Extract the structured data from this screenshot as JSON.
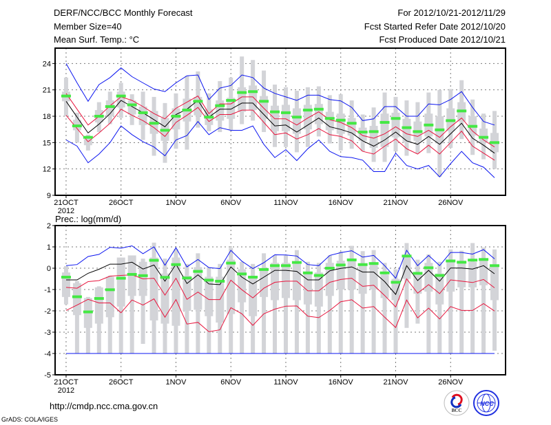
{
  "header": {
    "title": "DERF/NCC/BCC Monthly Forecast",
    "member_size": "Member Size=40",
    "variable": "Mean Surf. Temp.: °C",
    "period": "For 2012/10/21-2012/11/29",
    "start_date": "Fcst Started Refer Date 2012/10/20",
    "produced_date": "Fcst Produced Date 2012/10/21"
  },
  "footer": {
    "url": "http://cmdp.ncc.cma.gov.cn",
    "credit": "GrADS: COLA/IGES",
    "logo_bcc": "BCC",
    "logo_ncc": "NCC"
  },
  "colors": {
    "box": "#d3d4d8",
    "obs": "#44e844",
    "mean": "#000000",
    "inner": "#e8143c",
    "outer": "#0a14f0",
    "grid": "#777777"
  },
  "chart_data": [
    {
      "type": "box-line",
      "title": "Mean Surf. Temp.: °C",
      "xlabel": "",
      "ylabel": "",
      "x_tick_labels": [
        "21OCT",
        "26OCT",
        "1NOV",
        "6NOV",
        "11NOV",
        "16NOV",
        "21NOV",
        "26NOV"
      ],
      "x_tick_days": [
        0,
        5,
        10,
        15,
        20,
        25,
        30,
        35
      ],
      "x_year_label": "2012",
      "xlim": [
        -1,
        40
      ],
      "ylim": [
        9,
        25.75
      ],
      "y_ticks": [
        24,
        21,
        18,
        15,
        12,
        9
      ],
      "grid": true,
      "series": [
        {
          "name": "outer-upper",
          "color": "outer",
          "values": [
            24.0,
            21.8,
            19.7,
            21.6,
            22.4,
            23.5,
            22.5,
            21.8,
            21.1,
            20.8,
            21.8,
            22.6,
            22.7,
            19.9,
            21.2,
            21.5,
            22.7,
            22.4,
            21.2,
            20.6,
            20.2,
            19.8,
            20.4,
            20.4,
            19.9,
            19.75,
            19.0,
            17.5,
            17.7,
            19.1,
            19.1,
            18.0,
            18.0,
            19.4,
            19.3,
            19.9,
            20.8,
            19.0,
            17.4,
            17.0
          ]
        },
        {
          "name": "inner-upper",
          "color": "inner",
          "values": [
            20.6,
            18.8,
            17.0,
            18.0,
            19.2,
            20.2,
            19.8,
            19.1,
            18.3,
            17.7,
            18.9,
            19.6,
            20.3,
            18.3,
            19.4,
            19.4,
            20.2,
            20.2,
            18.9,
            17.7,
            17.7,
            17.0,
            17.8,
            18.5,
            17.6,
            17.3,
            16.7,
            15.8,
            15.5,
            16.0,
            16.8,
            16.0,
            15.7,
            16.4,
            15.6,
            16.8,
            17.8,
            16.3,
            15.3,
            14.5
          ]
        },
        {
          "name": "ensemble-mean",
          "color": "mean",
          "values": [
            19.7,
            17.9,
            16.1,
            17.1,
            18.3,
            19.8,
            19.1,
            18.4,
            17.6,
            16.8,
            18.2,
            18.8,
            19.8,
            17.9,
            18.8,
            18.8,
            19.5,
            19.5,
            18.2,
            16.9,
            17.0,
            16.2,
            17.0,
            17.8,
            16.8,
            16.5,
            16.1,
            15.2,
            14.6,
            15.3,
            16.2,
            15.2,
            14.8,
            15.7,
            14.8,
            16.0,
            17.2,
            15.5,
            14.7,
            13.8
          ]
        },
        {
          "name": "inner-lower",
          "color": "inner",
          "values": [
            18.1,
            16.6,
            15.1,
            16.1,
            17.2,
            18.8,
            18.1,
            17.5,
            16.7,
            15.7,
            17.3,
            18.1,
            19.0,
            17.4,
            18.2,
            18.2,
            18.7,
            18.7,
            17.3,
            15.9,
            16.1,
            15.4,
            15.9,
            16.6,
            15.9,
            15.7,
            15.2,
            14.0,
            13.7,
            14.6,
            15.4,
            14.3,
            13.7,
            14.7,
            13.7,
            15.0,
            16.3,
            14.6,
            13.8,
            13.0
          ]
        },
        {
          "name": "outer-lower",
          "color": "outer",
          "values": [
            15.3,
            14.6,
            12.7,
            13.7,
            15.0,
            16.9,
            15.9,
            15.1,
            14.5,
            13.5,
            15.3,
            15.8,
            17.4,
            15.9,
            16.7,
            16.4,
            16.4,
            16.9,
            14.8,
            13.3,
            14.2,
            12.95,
            14.3,
            15.3,
            14.0,
            13.4,
            13.3,
            13.0,
            11.7,
            11.7,
            13.8,
            12.4,
            12.0,
            12.4,
            11.1,
            12.6,
            14.0,
            12.7,
            12.2,
            11.0
          ]
        }
      ],
      "observed": [
        20.3,
        16.9,
        15.6,
        18.0,
        19.1,
        20.3,
        19.3,
        18.4,
        17.2,
        16.4,
        18.0,
        18.7,
        19.7,
        17.9,
        19.2,
        19.8,
        20.7,
        20.8,
        19.7,
        18.5,
        18.4,
        17.9,
        18.7,
        18.8,
        17.75,
        17.55,
        17.2,
        16.2,
        16.25,
        17.3,
        17.75,
        16.7,
        16.25,
        17.0,
        16.45,
        17.5,
        18.6,
        16.85,
        15.6,
        15.0
      ],
      "boxes": {
        "max": [
          22.4,
          18.4,
          15.9,
          19.6,
          20.8,
          21.8,
          20.5,
          20.8,
          20.2,
          19.5,
          20.6,
          22.6,
          23.1,
          20.6,
          22.0,
          22.4,
          24.8,
          24.4,
          23.2,
          21.6,
          21.3,
          20.9,
          21.3,
          21.4,
          20.4,
          20.5,
          19.8,
          18.2,
          19.0,
          20.7,
          20.2,
          19.8,
          19.6,
          20.7,
          21.0,
          21.1,
          22.1,
          19.9,
          18.3,
          18.6
        ],
        "q3": [
          20.8,
          17.6,
          15.4,
          18.7,
          19.8,
          20.8,
          19.8,
          19.1,
          18.6,
          17.8,
          18.9,
          20.0,
          20.2,
          18.8,
          19.8,
          20.1,
          21.3,
          21.5,
          20.3,
          19.2,
          19.3,
          18.9,
          19.3,
          19.4,
          18.5,
          18.3,
          17.8,
          16.7,
          16.9,
          18.3,
          18.4,
          17.7,
          17.4,
          18.3,
          18.0,
          18.9,
          19.6,
          18.0,
          16.6,
          16.1
        ],
        "q1": [
          19.7,
          16.4,
          14.7,
          17.3,
          18.0,
          19.0,
          18.2,
          17.0,
          16.0,
          15.2,
          16.5,
          17.4,
          18.1,
          17.0,
          17.5,
          17.7,
          18.5,
          18.7,
          17.7,
          16.3,
          16.3,
          16.0,
          16.5,
          17.1,
          16.4,
          16.0,
          15.8,
          15.2,
          14.4,
          14.5,
          15.6,
          15.0,
          15.2,
          15.7,
          14.9,
          16.3,
          17.4,
          15.8,
          15.0,
          13.9
        ],
        "min": [
          18.0,
          15.0,
          14.1,
          16.2,
          17.1,
          17.8,
          17.0,
          15.3,
          13.5,
          12.7,
          14.3,
          14.2,
          16.7,
          16.3,
          16.2,
          16.4,
          17.1,
          17.5,
          16.2,
          14.5,
          14.5,
          13.9,
          14.5,
          15.7,
          14.9,
          14.1,
          14.3,
          14.0,
          12.8,
          12.8,
          14.0,
          13.5,
          13.8,
          13.8,
          11.1,
          14.4,
          15.4,
          13.6,
          13.1,
          12.0
        ]
      }
    },
    {
      "type": "box-line",
      "title": "Prec.: log(mm/d)",
      "xlabel": "",
      "ylabel": "",
      "x_tick_labels": [
        "21OCT",
        "26OCT",
        "1NOV",
        "6NOV",
        "11NOV",
        "16NOV",
        "21NOV",
        "26NOV"
      ],
      "x_tick_days": [
        0,
        5,
        10,
        15,
        20,
        25,
        30,
        35
      ],
      "x_year_label": "2012",
      "xlim": [
        -1,
        40
      ],
      "ylim": [
        -5,
        2
      ],
      "y_ticks": [
        2,
        1,
        0,
        -1,
        -2,
        -3,
        -4,
        -5
      ],
      "grid": true,
      "series": [
        {
          "name": "outer-upper",
          "color": "outer",
          "values": [
            0.12,
            0.17,
            0.55,
            0.65,
            0.98,
            0.94,
            1.05,
            0.68,
            1.0,
            0.14,
            0.96,
            0.06,
            0.41,
            0.03,
            -0.02,
            0.84,
            0.33,
            -0.02,
            0.26,
            0.63,
            0.62,
            0.57,
            0.17,
            0.12,
            0.6,
            0.73,
            0.82,
            0.52,
            0.6,
            0.12,
            -0.47,
            0.84,
            0.12,
            0.6,
            0.12,
            0.74,
            0.74,
            0.66,
            0.87,
            0.44
          ]
        },
        {
          "name": "inner-upper",
          "color": "inner",
          "values": [
            -0.9,
            -0.94,
            -0.63,
            -0.58,
            -0.37,
            -0.34,
            -0.31,
            -0.5,
            -0.47,
            -1.26,
            -0.47,
            -1.46,
            -1.12,
            -1.47,
            -1.47,
            -0.56,
            -1.01,
            -1.39,
            -0.94,
            -0.66,
            -0.61,
            -0.61,
            -1.06,
            -1.06,
            -0.66,
            -0.53,
            -0.47,
            -0.85,
            -0.8,
            -1.28,
            -1.82,
            -0.5,
            -1.17,
            -0.77,
            -1.19,
            -0.55,
            -0.61,
            -0.67,
            -0.53,
            -0.92
          ]
        },
        {
          "name": "ensemble-mean",
          "color": "mean",
          "values": [
            -0.55,
            -0.55,
            -0.24,
            -0.05,
            0.19,
            0.19,
            0.28,
            -0.04,
            0.15,
            -0.61,
            0.19,
            -0.72,
            -0.31,
            -0.74,
            -0.77,
            0.06,
            -0.42,
            -0.74,
            -0.42,
            -0.1,
            -0.1,
            -0.15,
            -0.55,
            -0.55,
            -0.12,
            -0.01,
            0.06,
            -0.18,
            -0.18,
            -0.63,
            -1.23,
            0.12,
            -0.58,
            -0.1,
            -0.61,
            0.01,
            0.01,
            -0.04,
            0.12,
            -0.26
          ]
        },
        {
          "name": "inner-lower",
          "color": "inner",
          "values": [
            -1.98,
            -1.73,
            -1.46,
            -1.63,
            -1.63,
            -2.09,
            -1.49,
            -1.73,
            -1.44,
            -2.3,
            -1.47,
            -2.62,
            -2.54,
            -2.98,
            -2.89,
            -1.85,
            -2.14,
            -2.68,
            -2.14,
            -1.92,
            -1.78,
            -1.77,
            -2.25,
            -2.32,
            -1.98,
            -1.57,
            -1.48,
            -1.87,
            -1.8,
            -2.3,
            -2.78,
            -1.49,
            -2.33,
            -1.87,
            -2.38,
            -1.8,
            -1.98,
            -1.98,
            -1.66,
            -2.01
          ]
        },
        {
          "name": "outer-lower",
          "color": "outer",
          "values": [
            -4,
            -4,
            -4,
            -4,
            -4,
            -4,
            -4,
            -4,
            -4,
            -4,
            -4,
            -4,
            -4,
            -4,
            -4,
            -4,
            -4,
            -4,
            -4,
            -4,
            -4,
            -4,
            -4,
            -4,
            -4,
            -4,
            -4,
            -4,
            -4,
            -4,
            -4,
            -4,
            -4,
            -4,
            -4,
            -4,
            -4,
            -4,
            -4,
            -4
          ]
        }
      ],
      "observed": [
        -0.42,
        -1.34,
        -2.05,
        -1.42,
        -1.01,
        -0.47,
        -0.29,
        -0.35,
        0.37,
        -0.43,
        0.17,
        -0.46,
        -0.15,
        -0.56,
        -0.61,
        0.24,
        -0.27,
        -0.42,
        -0.06,
        0.12,
        0.12,
        0.27,
        -0.22,
        -0.34,
        0.0,
        0.15,
        0.39,
        0.17,
        0.22,
        -0.22,
        -0.66,
        0.57,
        -0.24,
        0.02,
        -0.34,
        0.34,
        0.28,
        0.38,
        0.41,
        0.12
      ],
      "boxes": {
        "max": [
          0.1,
          -0.6,
          -1.35,
          -0.85,
          -0.35,
          0.3,
          0.4,
          0.45,
          1.2,
          0.45,
          0.9,
          0.2,
          0.7,
          0.05,
          0.2,
          0.95,
          0.3,
          0.2,
          0.7,
          0.6,
          0.6,
          0.85,
          0.3,
          0.25,
          0.6,
          0.78,
          1.05,
          0.8,
          0.85,
          0.25,
          -0.05,
          1.18,
          0.4,
          0.65,
          0.3,
          0.88,
          0.82,
          1.18,
          0.97,
          0.88
        ],
        "q3": [
          -0.2,
          -0.7,
          -1.4,
          -0.9,
          -0.4,
          0.5,
          0.6,
          0.3,
          0.5,
          -0.25,
          0.5,
          -0.35,
          0.05,
          -0.4,
          -0.4,
          0.4,
          -0.05,
          -0.4,
          -0.05,
          0.25,
          0.25,
          0.2,
          -0.2,
          -0.2,
          0.25,
          0.35,
          0.4,
          0.15,
          0.15,
          -0.3,
          -0.5,
          0.5,
          -0.2,
          0.25,
          -0.25,
          0.35,
          0.35,
          0.3,
          0.45,
          0.1
        ],
        "q1": [
          -1.35,
          -2.2,
          -2.8,
          -2.6,
          -2.3,
          -1.8,
          -1.3,
          -1.3,
          -2.45,
          -2.6,
          -2.7,
          -2.0,
          -1.95,
          -2.25,
          -2.55,
          -2.15,
          -1.6,
          -2.25,
          -1.35,
          -1.5,
          -1.4,
          -1.5,
          -1.7,
          -1.8,
          -1.3,
          -1.0,
          -1.0,
          -1.2,
          -1.0,
          -1.4,
          -1.5,
          -0.5,
          -1.2,
          -1.1,
          -1.7,
          -1.1,
          -0.9,
          -0.9,
          -0.8,
          -1.5
        ],
        "min": [
          -1.7,
          -4,
          -4,
          -4,
          -4,
          -4,
          -4,
          -3.55,
          -4,
          -4,
          -4,
          -4,
          -4,
          -4,
          -4,
          -4,
          -4,
          -4,
          -4,
          -4,
          -4,
          -4,
          -4,
          -4,
          -4,
          -4,
          -4,
          -4,
          -4,
          -4,
          -4,
          -2.8,
          -2.6,
          -4,
          -4,
          -4,
          -4,
          -4,
          -4,
          -3.87
        ]
      }
    }
  ]
}
